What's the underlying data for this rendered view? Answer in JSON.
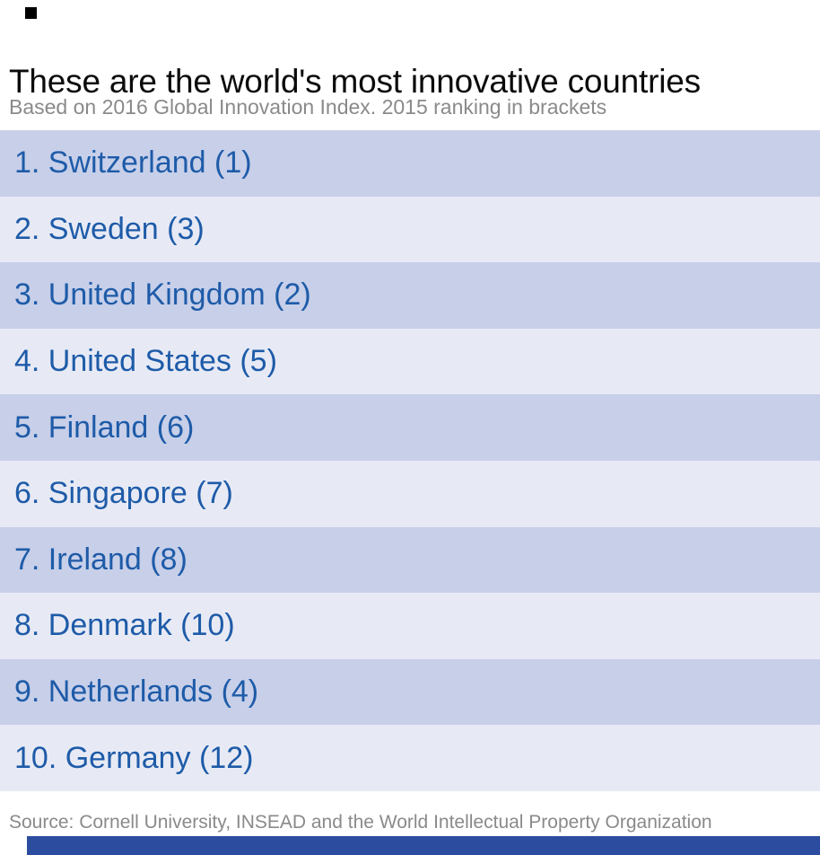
{
  "header": {
    "title": "These are the world's most innovative countries",
    "subtitle": "Based on 2016 Global Innovation Index. 2015 ranking in brackets"
  },
  "chart_data": {
    "type": "table",
    "title": "These are the world's most innovative countries",
    "subtitle": "Based on 2016 Global Innovation Index. 2015 ranking in brackets",
    "columns": [
      "rank_2016",
      "country",
      "rank_2015"
    ],
    "rows": [
      {
        "rank": 1,
        "country": "Switzerland",
        "rank_2015": 1,
        "label": "1. Switzerland (1)"
      },
      {
        "rank": 2,
        "country": "Sweden",
        "rank_2015": 3,
        "label": "2. Sweden (3)"
      },
      {
        "rank": 3,
        "country": "United Kingdom",
        "rank_2015": 2,
        "label": "3. United Kingdom (2)"
      },
      {
        "rank": 4,
        "country": "United States",
        "rank_2015": 5,
        "label": "4. United States (5)"
      },
      {
        "rank": 5,
        "country": "Finland",
        "rank_2015": 6,
        "label": "5. Finland (6)"
      },
      {
        "rank": 6,
        "country": "Singapore",
        "rank_2015": 7,
        "label": "6. Singapore (7)"
      },
      {
        "rank": 7,
        "country": "Ireland",
        "rank_2015": 8,
        "label": "7. Ireland (8)"
      },
      {
        "rank": 8,
        "country": "Denmark",
        "rank_2015": 10,
        "label": "8. Denmark (10)"
      },
      {
        "rank": 9,
        "country": "Netherlands",
        "rank_2015": 4,
        "label": "9. Netherlands (4)"
      },
      {
        "rank": 10,
        "country": "Germany",
        "rank_2015": 12,
        "label": "10. Germany (12)"
      }
    ],
    "source": "Source: Cornell University, INSEAD and the World Intellectual Property Organization",
    "legend_position": "none",
    "grid": false
  },
  "footer": {
    "source": "Source: Cornell University, INSEAD and the World Intellectual Property Organization"
  },
  "colors": {
    "row_odd_bg": "#c7cfe9",
    "row_even_bg": "#e7eaf5",
    "row_text": "#1e5ba8",
    "title_text": "#0b0b0b",
    "subtitle_text": "#8a8a8a",
    "source_text": "#8a8a8a",
    "bottom_bar": "#2c4d9f",
    "marker": "#000000"
  }
}
